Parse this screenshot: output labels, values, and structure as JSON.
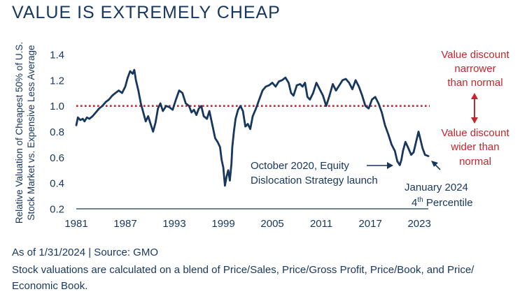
{
  "title": "VALUE IS EXTREMELY CHEAP",
  "footer": {
    "source": "As of 1/31/2024 | Source: GMO",
    "methodology_line1": "Stock valuations are calculated on a blend of Price/Sales, Price/Gross Profit, Price/Book, and Price/",
    "methodology_line2": "Economic Book."
  },
  "colors": {
    "series": "#17375e",
    "reference_line": "#c0282d",
    "annotation_red": "#c0282d",
    "text": "#17375e"
  },
  "annotations": {
    "narrower_line1": "Value discount",
    "narrower_line2": "narrower",
    "narrower_line3": "than normal",
    "wider_line1": "Value discount",
    "wider_line2": "wider than",
    "wider_line3": "normal",
    "launch_line1": "October 2020, Equity",
    "launch_line2": "Dislocation Strategy launch",
    "latest_line1": "January 2024",
    "latest_line2_main": "4",
    "latest_line2_sup": "th",
    "latest_line2_rest": " Percentile"
  },
  "chart_data": {
    "type": "line",
    "title": "VALUE IS EXTREMELY CHEAP",
    "ylabel_line1": "Relative Valuation of Cheapest 50% of U.S.",
    "ylabel_line2": "Stock Market vs. Expensive Less Average",
    "xlabel": "",
    "x_ticks": [
      "1981",
      "1987",
      "1993",
      "1999",
      "2005",
      "2011",
      "2017",
      "2023"
    ],
    "y_ticks": [
      "0.2",
      "0.4",
      "0.6",
      "0.8",
      "1.0",
      "1.2",
      "1.4"
    ],
    "xlim": [
      1981,
      2024.1
    ],
    "ylim": [
      0.2,
      1.4
    ],
    "reference_line": {
      "value": 1.0,
      "style": "dotted"
    },
    "grid": false,
    "series": [
      {
        "x": [
          1981.0,
          1981.2,
          1981.5,
          1981.8,
          1982.0,
          1982.3,
          1982.6,
          1983.0,
          1983.4,
          1983.8,
          1984.2,
          1984.6,
          1985.0,
          1985.4,
          1985.8,
          1986.2,
          1986.6,
          1987.0,
          1987.3,
          1987.6,
          1987.9,
          1988.1,
          1988.3,
          1988.6,
          1988.9,
          1989.2,
          1989.5,
          1989.8,
          1990.1,
          1990.4,
          1990.7,
          1991.0,
          1991.3,
          1991.6,
          1992.0,
          1992.4,
          1992.8,
          1993.2,
          1993.6,
          1994.0,
          1994.4,
          1994.8,
          1995.1,
          1995.4,
          1995.7,
          1996.0,
          1996.3,
          1996.6,
          1997.0,
          1997.3,
          1997.6,
          1998.0,
          1998.3,
          1998.6,
          1998.8,
          1999.0,
          1999.2,
          1999.4,
          1999.6,
          1999.8,
          2000.0,
          2000.1,
          2000.3,
          2000.5,
          2000.8,
          2001.1,
          2001.4,
          2001.7,
          2002.0,
          2002.3,
          2002.6,
          2003.0,
          2003.4,
          2003.8,
          2004.2,
          2004.6,
          2005.0,
          2005.4,
          2005.8,
          2006.2,
          2006.6,
          2007.0,
          2007.3,
          2007.6,
          2008.0,
          2008.4,
          2008.7,
          2009.0,
          2009.3,
          2009.6,
          2010.0,
          2010.4,
          2010.8,
          2011.2,
          2011.6,
          2012.0,
          2012.4,
          2012.8,
          2013.2,
          2013.6,
          2014.0,
          2014.4,
          2014.8,
          2015.2,
          2015.6,
          2016.0,
          2016.4,
          2016.8,
          2017.2,
          2017.6,
          2018.0,
          2018.4,
          2018.8,
          2019.2,
          2019.6,
          2020.0,
          2020.3,
          2020.6,
          2020.8,
          2021.0,
          2021.3,
          2021.6,
          2022.0,
          2022.3,
          2022.6,
          2022.9,
          2023.1,
          2023.4,
          2023.7,
          2024.1
        ],
        "values": [
          0.85,
          0.91,
          0.89,
          0.9,
          0.88,
          0.91,
          0.9,
          0.92,
          0.95,
          0.98,
          1.0,
          1.03,
          1.05,
          1.08,
          1.1,
          1.12,
          1.1,
          1.15,
          1.22,
          1.27,
          1.25,
          1.28,
          1.2,
          1.12,
          1.02,
          0.95,
          0.88,
          0.92,
          0.86,
          0.8,
          0.87,
          0.98,
          1.02,
          0.96,
          1.0,
          0.99,
          0.97,
          1.05,
          1.12,
          1.1,
          1.02,
          1.0,
          0.95,
          0.97,
          0.93,
          0.98,
          1.0,
          0.92,
          0.9,
          0.96,
          0.87,
          0.75,
          0.72,
          0.68,
          0.58,
          0.52,
          0.38,
          0.45,
          0.5,
          0.42,
          0.55,
          0.68,
          0.8,
          0.9,
          0.97,
          1.0,
          0.96,
          0.84,
          0.86,
          0.82,
          0.92,
          0.98,
          1.05,
          1.12,
          1.15,
          1.16,
          1.18,
          1.15,
          1.19,
          1.2,
          1.22,
          1.18,
          1.1,
          1.08,
          1.16,
          1.17,
          1.15,
          1.18,
          1.07,
          1.05,
          1.1,
          1.18,
          1.13,
          1.08,
          1.0,
          1.08,
          1.17,
          1.12,
          1.16,
          1.2,
          1.21,
          1.18,
          1.13,
          1.2,
          1.15,
          1.08,
          1.0,
          0.98,
          1.05,
          1.07,
          1.02,
          0.95,
          0.85,
          0.78,
          0.7,
          0.65,
          0.57,
          0.54,
          0.58,
          0.65,
          0.72,
          0.68,
          0.62,
          0.64,
          0.72,
          0.8,
          0.75,
          0.67,
          0.62,
          0.61
        ]
      }
    ]
  }
}
